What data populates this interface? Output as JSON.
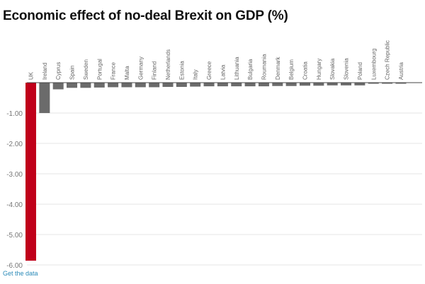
{
  "title": "Economic effect of no-deal Brexit on GDP (%)",
  "footer_link": "Get the data",
  "colors": {
    "highlight": "#c0001a",
    "default": "#6b6b6b",
    "grid": "#e4e4e4",
    "axis": "#444444"
  },
  "chart_data": {
    "type": "bar",
    "title": "Economic effect of no-deal Brexit on GDP (%)",
    "xlabel": "",
    "ylabel": "",
    "ylim": [
      -6,
      0
    ],
    "yticks": [
      -1,
      -2,
      -3,
      -4,
      -5,
      -6
    ],
    "ytick_labels": [
      "-1.00",
      "-2.00",
      "-3.00",
      "-4.00",
      "-5.00",
      "-6.00"
    ],
    "grid": true,
    "legend": "none",
    "highlight": "UK",
    "categories": [
      "UK",
      "Ireland",
      "Cyprus",
      "Spain",
      "Sweden",
      "Portugal",
      "France",
      "Malta",
      "Germany",
      "Finland",
      "Netherlands",
      "Estonia",
      "Italy",
      "Greece",
      "Latvia",
      "Lithuania",
      "Bulgaria",
      "Roumania",
      "Denmark",
      "Belgium",
      "Croatia",
      "Hungary",
      "Slovakia",
      "Slovenia",
      "Poland",
      "Luxembourg",
      "Czech Republic",
      "Austria"
    ],
    "values": [
      -5.86,
      -1.0,
      -0.22,
      -0.17,
      -0.17,
      -0.16,
      -0.15,
      -0.15,
      -0.15,
      -0.15,
      -0.14,
      -0.14,
      -0.13,
      -0.12,
      -0.12,
      -0.12,
      -0.12,
      -0.12,
      -0.11,
      -0.11,
      -0.1,
      -0.1,
      -0.09,
      -0.09,
      -0.09,
      -0.03,
      -0.03,
      -0.03
    ]
  }
}
